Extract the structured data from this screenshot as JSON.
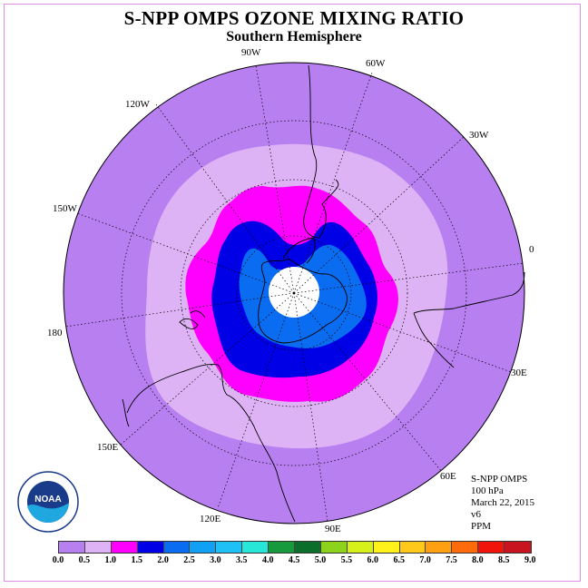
{
  "title": "S-NPP OMPS OZONE MIXING RATIO",
  "subtitle": "Southern Hemisphere",
  "longitude_labels": [
    "90W",
    "60W",
    "30W",
    "0",
    "30E",
    "60E",
    "90E",
    "120E",
    "150E",
    "180",
    "150W",
    "120W"
  ],
  "info": {
    "instrument": "S-NPP OMPS",
    "level": "100 hPa",
    "date": "March 22, 2015",
    "version": "v6",
    "units": "PPM"
  },
  "logo_text": "NOAA",
  "colorbar": {
    "ticks": [
      "0.0",
      "0.5",
      "1.0",
      "1.5",
      "2.0",
      "2.5",
      "3.0",
      "3.5",
      "4.0",
      "4.5",
      "5.0",
      "5.5",
      "6.0",
      "6.5",
      "7.0",
      "7.5",
      "8.0",
      "8.5",
      "9.0"
    ],
    "colors": [
      "#b77ff0",
      "#deb3f5",
      "#ff00ff",
      "#0000e6",
      "#0a6cf0",
      "#12a0f5",
      "#1ec0f5",
      "#27e8d8",
      "#169a3c",
      "#0b6e2a",
      "#8dd21b",
      "#d6f01a",
      "#fff21a",
      "#ffc81a",
      "#ffa012",
      "#ff6a0a",
      "#f0140a",
      "#c8141e",
      "#7a4c2a"
    ]
  },
  "map": {
    "background_color": "#b77ff0",
    "contour_levels_ppm": [
      0.5,
      1.0,
      1.5,
      2.0
    ],
    "polar_no_data": true
  }
}
